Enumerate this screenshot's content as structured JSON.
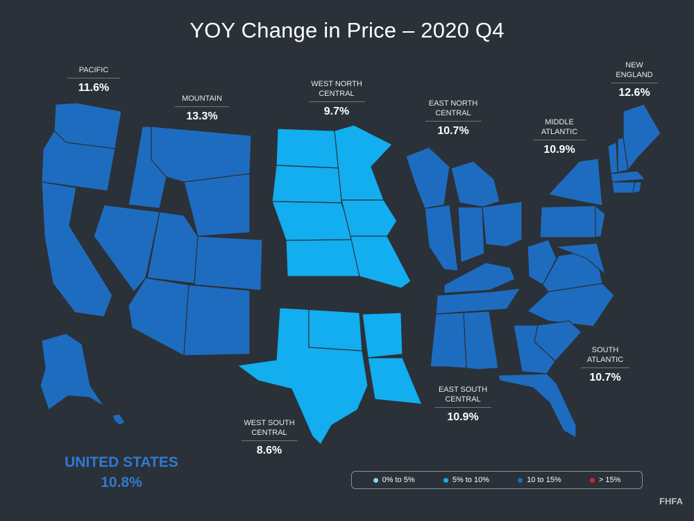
{
  "title": "YOY Change in Price – 2020 Q4",
  "colors": {
    "background": "#2b3138",
    "band_0_5": "#8dd3f5",
    "band_5_10": "#12aef0",
    "band_10_15": "#1e6cc0",
    "band_over_15": "#e02424"
  },
  "regions": [
    {
      "id": "pacific",
      "name": "PACIFIC",
      "value": "11.6%",
      "band": "band_10_15"
    },
    {
      "id": "mountain",
      "name": "MOUNTAIN",
      "value": "13.3%",
      "band": "band_10_15"
    },
    {
      "id": "west-north-central",
      "name": "WEST NORTH\nCENTRAL",
      "value": "9.7%",
      "band": "band_5_10"
    },
    {
      "id": "east-north-central",
      "name": "EAST NORTH\nCENTRAL",
      "value": "10.7%",
      "band": "band_10_15"
    },
    {
      "id": "middle-atlantic",
      "name": "MIDDLE\nATLANTIC",
      "value": "10.9%",
      "band": "band_10_15"
    },
    {
      "id": "new-england",
      "name": "NEW\nENGLAND",
      "value": "12.6%",
      "band": "band_10_15"
    },
    {
      "id": "south-atlantic",
      "name": "SOUTH\nATLANTIC",
      "value": "10.7%",
      "band": "band_10_15"
    },
    {
      "id": "east-south-central",
      "name": "EAST SOUTH\nCENTRAL",
      "value": "10.9%",
      "band": "band_10_15"
    },
    {
      "id": "west-south-central",
      "name": "WEST SOUTH\nCENTRAL",
      "value": "8.6%",
      "band": "band_5_10"
    }
  ],
  "national": {
    "name": "UNITED STATES",
    "value": "10.8%"
  },
  "legend": [
    {
      "label": "0% to 5%",
      "color": "#8dd3f5"
    },
    {
      "label": "5% to 10%",
      "color": "#12aef0"
    },
    {
      "label": "10 to 15%",
      "color": "#1e6cc0"
    },
    {
      "label": "> 15%",
      "color": "#e02424"
    }
  ],
  "source": "FHFA"
}
